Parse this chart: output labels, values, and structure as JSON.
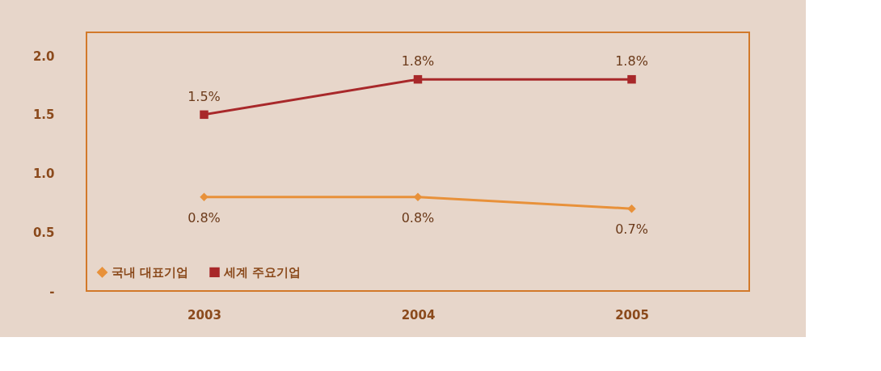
{
  "chart_data": {
    "type": "line",
    "categories": [
      "2003",
      "2004",
      "2005"
    ],
    "series": [
      {
        "name": "국내 대표기업",
        "color": "#e8913a",
        "marker": "diamond",
        "values": [
          0.8,
          0.8,
          0.7
        ],
        "value_labels": [
          "0.8%",
          "0.8%",
          "0.7%"
        ]
      },
      {
        "name": "세계 주요기업",
        "color": "#a8282a",
        "marker": "square",
        "values": [
          1.5,
          1.8,
          1.8
        ],
        "value_labels": [
          "1.5%",
          "1.8%",
          "1.8%"
        ]
      }
    ],
    "ylim": [
      0,
      2.2
    ],
    "yticks": [
      {
        "value": 0,
        "label": "-"
      },
      0.5,
      {
        "value": 1,
        "label": "1.0"
      },
      1.5,
      {
        "value": 2,
        "label": "2.0"
      }
    ],
    "grid": false,
    "legend": "bottom left",
    "line_style": "solid"
  }
}
